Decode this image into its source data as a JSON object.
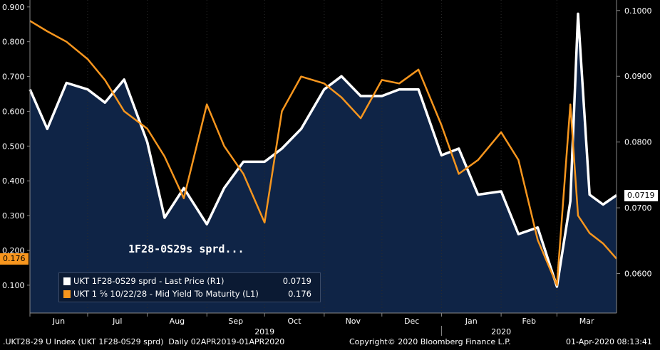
{
  "chart_data": {
    "type": "line",
    "annotation": "1F28-0S29s sprd...",
    "x_dates": [
      "2019-04-02",
      "2019-04-16",
      "2019-05-01",
      "2019-05-16",
      "2019-06-01",
      "2019-06-15",
      "2019-07-01",
      "2019-07-15",
      "2019-08-01",
      "2019-08-15",
      "2019-09-01",
      "2019-09-15",
      "2019-10-01",
      "2019-10-15",
      "2019-11-01",
      "2019-11-15",
      "2019-12-01",
      "2019-12-15",
      "2020-01-01",
      "2020-01-15",
      "2020-02-01",
      "2020-02-15",
      "2020-03-01",
      "2020-03-15",
      "2020-04-01"
    ],
    "left_axis": {
      "ylim": [
        0.02,
        0.92
      ],
      "ticks": [
        0.1,
        0.2,
        0.3,
        0.4,
        0.5,
        0.6,
        0.7,
        0.8,
        0.9
      ],
      "tick_labels": [
        "0.100",
        "0.200",
        "0.300",
        "0.400",
        "0.500",
        "0.600",
        "0.700",
        "0.800",
        "0.900"
      ]
    },
    "right_axis": {
      "ylim": [
        0.054,
        0.1016
      ],
      "ticks": [
        0.06,
        0.07,
        0.08,
        0.09,
        0.1
      ],
      "tick_labels": [
        "0.0600",
        "0.0700",
        "0.0800",
        "0.0900",
        "0.1000"
      ]
    },
    "x_axis": {
      "months": [
        {
          "label": "Jun",
          "date": "2019-06-01"
        },
        {
          "label": "Jul",
          "date": "2019-07-01"
        },
        {
          "label": "Aug",
          "date": "2019-08-01"
        },
        {
          "label": "Sep",
          "date": "2019-09-01"
        },
        {
          "label": "Oct",
          "date": "2019-10-01"
        },
        {
          "label": "Nov",
          "date": "2019-11-01"
        },
        {
          "label": "Dec",
          "date": "2019-12-01"
        },
        {
          "label": "Jan",
          "date": "2020-01-01"
        },
        {
          "label": "Feb",
          "date": "2020-02-01"
        },
        {
          "label": "Mar",
          "date": "2020-03-01"
        }
      ],
      "years": [
        {
          "label": "2019",
          "date": "2019-10-01"
        },
        {
          "label": "2020",
          "date": "2020-02-01"
        }
      ],
      "range": [
        "2019-06-01",
        "2020-04-01"
      ]
    },
    "series": [
      {
        "name": "UKT 1F28-0S29 sprd - Last Price (R1)",
        "axis": "right",
        "color": "#ffffff",
        "last_value": "0.0719",
        "dates": [
          "2019-06-01",
          "2019-06-10",
          "2019-06-20",
          "2019-07-01",
          "2019-07-10",
          "2019-07-20",
          "2019-08-01",
          "2019-08-10",
          "2019-08-20",
          "2019-09-01",
          "2019-09-10",
          "2019-09-20",
          "2019-10-01",
          "2019-10-10",
          "2019-10-20",
          "2019-11-01",
          "2019-11-10",
          "2019-11-20",
          "2019-12-01",
          "2019-12-10",
          "2019-12-20",
          "2020-01-01",
          "2020-01-10",
          "2020-01-20",
          "2020-02-01",
          "2020-02-10",
          "2020-02-20",
          "2020-03-01",
          "2020-03-08",
          "2020-03-12",
          "2020-03-18",
          "2020-03-25",
          "2020-04-01"
        ],
        "values": [
          0.088,
          0.082,
          0.089,
          0.088,
          0.086,
          0.0895,
          0.08,
          0.0685,
          0.073,
          0.0675,
          0.073,
          0.077,
          0.077,
          0.079,
          0.082,
          0.088,
          0.09,
          0.087,
          0.087,
          0.088,
          0.088,
          0.078,
          0.079,
          0.072,
          0.0725,
          0.066,
          0.067,
          0.058,
          0.071,
          0.0995,
          0.072,
          0.0705,
          0.0719
        ]
      },
      {
        "name": "UKT 1 ⅝ 10/22/28 - Mid Yield To Maturity (L1)",
        "axis": "left",
        "color": "#f7961e",
        "last_value": "0.176",
        "dates": [
          "2019-06-01",
          "2019-06-10",
          "2019-06-20",
          "2019-07-01",
          "2019-07-10",
          "2019-07-20",
          "2019-08-01",
          "2019-08-10",
          "2019-08-20",
          "2019-09-01",
          "2019-09-10",
          "2019-09-20",
          "2019-10-01",
          "2019-10-10",
          "2019-10-20",
          "2019-11-01",
          "2019-11-10",
          "2019-11-20",
          "2019-12-01",
          "2019-12-10",
          "2019-12-20",
          "2020-01-01",
          "2020-01-10",
          "2020-01-20",
          "2020-02-01",
          "2020-02-10",
          "2020-02-20",
          "2020-03-01",
          "2020-03-08",
          "2020-03-12",
          "2020-03-18",
          "2020-03-25",
          "2020-04-01"
        ],
        "values": [
          0.86,
          0.83,
          0.8,
          0.75,
          0.69,
          0.6,
          0.55,
          0.47,
          0.35,
          0.62,
          0.5,
          0.42,
          0.28,
          0.6,
          0.7,
          0.68,
          0.64,
          0.58,
          0.69,
          0.68,
          0.72,
          0.56,
          0.42,
          0.46,
          0.54,
          0.46,
          0.23,
          0.1,
          0.62,
          0.3,
          0.25,
          0.22,
          0.176
        ]
      }
    ]
  },
  "legend": {
    "items": [
      {
        "label": "UKT 1F28-0S29 sprd - Last Price (R1)",
        "value": "0.0719",
        "color": "#ffffff"
      },
      {
        "label": "UKT 1 ⅝ 10/22/28 - Mid Yield To Maturity (L1)",
        "value": "0.176",
        "color": "#f7961e"
      }
    ]
  },
  "badges": {
    "left": "0.176",
    "right": "0.0719"
  },
  "footer": {
    "left": ".UKT28-29 U Index (UKT 1F28-0S29 sprd)  Daily 02APR2019-01APR2020",
    "center": "Copyright© 2020 Bloomberg Finance L.P.",
    "right": "01-Apr-2020 08:13:41"
  },
  "colors": {
    "plot_bg": "#0b1a33",
    "area_fill": "#0f2446",
    "white_line": "#ffffff",
    "orange_line": "#f7961e"
  }
}
